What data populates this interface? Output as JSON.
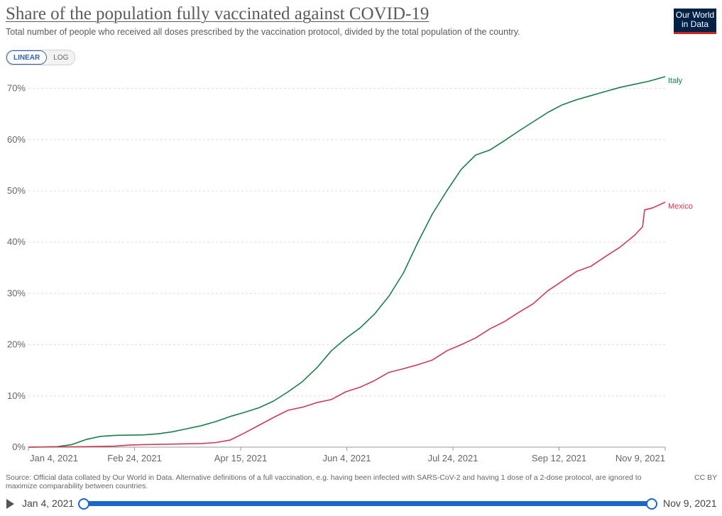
{
  "header": {
    "title": "Share of the population fully vaccinated against COVID-19",
    "subtitle": "Total number of people who received all doses prescribed by the vaccination protocol, divided by the total population of the country.",
    "logo_line1": "Our World",
    "logo_line2": "in Data"
  },
  "scale_toggle": {
    "linear": "LINEAR",
    "log": "LOG",
    "selected": "LINEAR"
  },
  "chart_data": {
    "type": "line",
    "title": "Share of the population fully vaccinated against COVID-19",
    "xlabel": "",
    "ylabel": "",
    "x_ticks": [
      "Jan 4, 2021",
      "Feb 24, 2021",
      "Apr 15, 2021",
      "Jun 4, 2021",
      "Jul 24, 2021",
      "Sep 12, 2021",
      "Nov 9, 2021"
    ],
    "y_ticks": [
      "0%",
      "10%",
      "20%",
      "30%",
      "40%",
      "50%",
      "60%",
      "70%"
    ],
    "ylim": [
      0,
      72
    ],
    "grid": "horizontal dashed",
    "legend": "labels at line ends",
    "series": [
      {
        "name": "Italy",
        "color": "#1a7f45",
        "points": [
          [
            "2021-01-04",
            0
          ],
          [
            "2021-01-18",
            0.1
          ],
          [
            "2021-01-25",
            0.5
          ],
          [
            "2021-02-01",
            1.5
          ],
          [
            "2021-02-08",
            2.1
          ],
          [
            "2021-02-15",
            2.3
          ],
          [
            "2021-03-01",
            2.4
          ],
          [
            "2021-03-08",
            2.6
          ],
          [
            "2021-03-15",
            3.0
          ],
          [
            "2021-03-22",
            3.6
          ],
          [
            "2021-03-29",
            4.2
          ],
          [
            "2021-04-05",
            5.0
          ],
          [
            "2021-04-12",
            6.0
          ],
          [
            "2021-04-19",
            6.8
          ],
          [
            "2021-04-26",
            7.7
          ],
          [
            "2021-05-03",
            9.0
          ],
          [
            "2021-05-10",
            10.8
          ],
          [
            "2021-05-17",
            12.8
          ],
          [
            "2021-05-24",
            15.5
          ],
          [
            "2021-05-31",
            18.8
          ],
          [
            "2021-06-07",
            21.2
          ],
          [
            "2021-06-14",
            23.3
          ],
          [
            "2021-06-21",
            26.0
          ],
          [
            "2021-06-28",
            29.5
          ],
          [
            "2021-07-05",
            34.0
          ],
          [
            "2021-07-12",
            40.0
          ],
          [
            "2021-07-19",
            45.5
          ],
          [
            "2021-07-26",
            50.0
          ],
          [
            "2021-08-02",
            54.2
          ],
          [
            "2021-08-09",
            57.0
          ],
          [
            "2021-08-16",
            58.0
          ],
          [
            "2021-08-23",
            59.8
          ],
          [
            "2021-08-30",
            61.7
          ],
          [
            "2021-09-06",
            63.5
          ],
          [
            "2021-09-13",
            65.3
          ],
          [
            "2021-09-20",
            66.8
          ],
          [
            "2021-09-27",
            67.8
          ],
          [
            "2021-10-04",
            68.6
          ],
          [
            "2021-10-11",
            69.4
          ],
          [
            "2021-10-18",
            70.2
          ],
          [
            "2021-10-25",
            70.8
          ],
          [
            "2021-11-01",
            71.4
          ],
          [
            "2021-11-09",
            72.3
          ]
        ]
      },
      {
        "name": "Mexico",
        "color": "#cf3b52",
        "points": [
          [
            "2021-01-04",
            0
          ],
          [
            "2021-02-01",
            0.1
          ],
          [
            "2021-02-15",
            0.2
          ],
          [
            "2021-02-22",
            0.4
          ],
          [
            "2021-03-01",
            0.5
          ],
          [
            "2021-03-15",
            0.6
          ],
          [
            "2021-03-29",
            0.7
          ],
          [
            "2021-04-05",
            0.9
          ],
          [
            "2021-04-12",
            1.4
          ],
          [
            "2021-04-19",
            2.8
          ],
          [
            "2021-04-26",
            4.3
          ],
          [
            "2021-05-03",
            5.8
          ],
          [
            "2021-05-10",
            7.2
          ],
          [
            "2021-05-17",
            7.8
          ],
          [
            "2021-05-24",
            8.7
          ],
          [
            "2021-05-31",
            9.3
          ],
          [
            "2021-06-07",
            10.8
          ],
          [
            "2021-06-14",
            11.7
          ],
          [
            "2021-06-21",
            13.0
          ],
          [
            "2021-06-28",
            14.6
          ],
          [
            "2021-07-05",
            15.3
          ],
          [
            "2021-07-12",
            16.1
          ],
          [
            "2021-07-19",
            17.0
          ],
          [
            "2021-07-26",
            18.8
          ],
          [
            "2021-08-02",
            20.0
          ],
          [
            "2021-08-09",
            21.3
          ],
          [
            "2021-08-16",
            23.1
          ],
          [
            "2021-08-23",
            24.5
          ],
          [
            "2021-08-30",
            26.3
          ],
          [
            "2021-09-06",
            28.0
          ],
          [
            "2021-09-13",
            30.5
          ],
          [
            "2021-09-20",
            32.4
          ],
          [
            "2021-09-27",
            34.3
          ],
          [
            "2021-10-04",
            35.3
          ],
          [
            "2021-10-11",
            37.2
          ],
          [
            "2021-10-18",
            39.0
          ],
          [
            "2021-10-25",
            41.3
          ],
          [
            "2021-10-29",
            43.0
          ],
          [
            "2021-10-30",
            46.3
          ],
          [
            "2021-11-03",
            46.7
          ],
          [
            "2021-11-09",
            47.8
          ]
        ]
      }
    ]
  },
  "footer": {
    "source": "Source: Official data collated by Our World in Data. Alternative definitions of a full vaccination, e.g. having been infected with SARS-CoV-2 and having 1 dose of a 2-dose protocol, are ignored to maximize comparability between countries.",
    "license": "CC BY"
  },
  "timeline": {
    "start": "Jan 4, 2021",
    "end": "Nov 9, 2021"
  }
}
